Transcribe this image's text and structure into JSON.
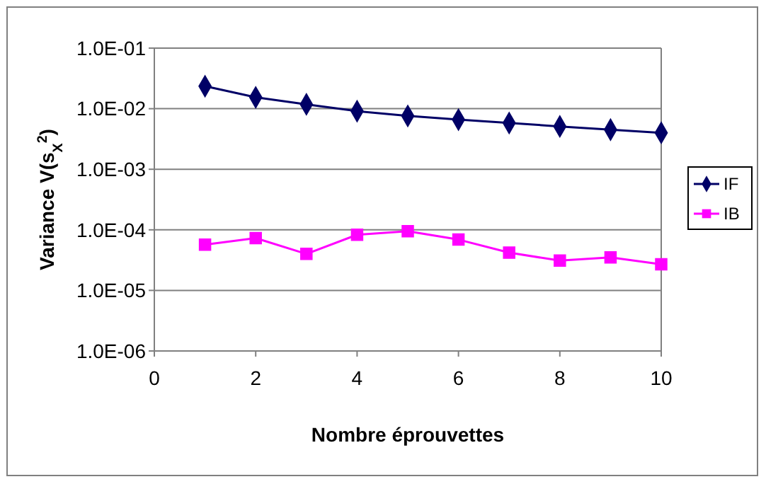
{
  "chart_data": {
    "type": "line",
    "xlabel": "Nombre éprouvettes",
    "ylabel": "Variance V(s$_{X}$$^{2}$)",
    "x": [
      1,
      2,
      3,
      4,
      5,
      6,
      7,
      8,
      9,
      10
    ],
    "series": [
      {
        "name": "IF",
        "color": "#000066",
        "marker": "diamond",
        "values": [
          0.0235,
          0.0154,
          0.0118,
          0.0091,
          0.0076,
          0.0066,
          0.0058,
          0.0051,
          0.0045,
          0.004
        ]
      },
      {
        "name": "IB",
        "color": "#ff00ff",
        "marker": "square",
        "values": [
          5.7e-05,
          7.3e-05,
          4e-05,
          8.3e-05,
          9.5e-05,
          6.9e-05,
          4.2e-05,
          3.1e-05,
          3.5e-05,
          2.7e-05
        ]
      }
    ],
    "log": "y",
    "xlim": [
      0,
      10
    ],
    "xticks": [
      0,
      2,
      4,
      6,
      8,
      10
    ],
    "ylim": [
      1e-06,
      0.1
    ],
    "yticks": [
      {
        "value": 1e-06,
        "label": "1.0E-06"
      },
      {
        "value": 1e-05,
        "label": "1.0E-05"
      },
      {
        "value": 0.0001,
        "label": "1.0E-04"
      },
      {
        "value": 0.001,
        "label": "1.0E-03"
      },
      {
        "value": 0.01,
        "label": "1.0E-02"
      },
      {
        "value": 0.1,
        "label": "1.0E-01"
      }
    ],
    "grid": "y",
    "legend": "right",
    "line_style": "solid"
  }
}
